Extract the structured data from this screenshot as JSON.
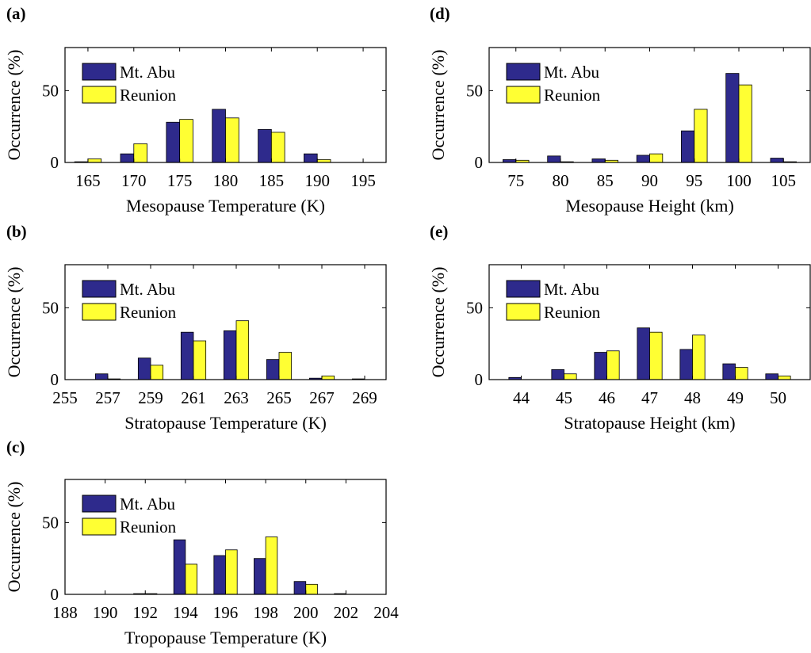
{
  "colors": {
    "mt_abu": "#2e2a8c",
    "reunion": "#ffff33"
  },
  "chart_data": [
    {
      "panel": "(a)",
      "type": "bar",
      "xlabel": "Mesopause Temperature (K)",
      "ylabel": "Occurrence (%)",
      "ylim": [
        0,
        80
      ],
      "yticks": [
        0,
        50
      ],
      "xlim": [
        162.5,
        197.5
      ],
      "xticks": [
        165,
        170,
        175,
        180,
        185,
        190,
        195
      ],
      "legend": {
        "placement": "top-left",
        "entries": [
          "Mt. Abu",
          "Reunion"
        ]
      },
      "series": [
        {
          "name": "Mt. Abu",
          "x": [
            165,
            170,
            175,
            180,
            185,
            190
          ],
          "values": [
            0.5,
            6,
            28,
            37,
            23,
            6
          ]
        },
        {
          "name": "Reunion",
          "x": [
            165,
            170,
            175,
            180,
            185,
            190
          ],
          "values": [
            2.5,
            13,
            30,
            31,
            21,
            2
          ]
        }
      ]
    },
    {
      "panel": "(b)",
      "type": "bar",
      "xlabel": "Stratopause Temperature (K)",
      "ylabel": "Occurrence (%)",
      "ylim": [
        0,
        80
      ],
      "yticks": [
        0,
        50
      ],
      "xlim": [
        255,
        270
      ],
      "xticks": [
        255,
        257,
        259,
        261,
        263,
        265,
        267,
        269
      ],
      "legend": {
        "placement": "top-left",
        "entries": [
          "Mt. Abu",
          "Reunion"
        ]
      },
      "series": [
        {
          "name": "Mt. Abu",
          "x": [
            257,
            259,
            261,
            263,
            265,
            267,
            269
          ],
          "values": [
            4,
            15,
            33,
            34,
            14,
            1,
            0.5
          ]
        },
        {
          "name": "Reunion",
          "x": [
            257,
            259,
            261,
            263,
            265,
            267,
            269
          ],
          "values": [
            0.5,
            10,
            27,
            41,
            19,
            2.5,
            0
          ]
        }
      ]
    },
    {
      "panel": "(c)",
      "type": "bar",
      "xlabel": "Tropopause Temperature (K)",
      "ylabel": "Occurrence (%)",
      "ylim": [
        0,
        80
      ],
      "yticks": [
        0,
        50
      ],
      "xlim": [
        188,
        204
      ],
      "xticks": [
        188,
        190,
        192,
        194,
        196,
        198,
        200,
        202,
        204
      ],
      "legend": {
        "placement": "top-left",
        "entries": [
          "Mt. Abu",
          "Reunion"
        ]
      },
      "series": [
        {
          "name": "Mt. Abu",
          "x": [
            192,
            194,
            196,
            198,
            200,
            202
          ],
          "values": [
            0.5,
            38,
            27,
            25,
            9,
            0.5
          ]
        },
        {
          "name": "Reunion",
          "x": [
            192,
            194,
            196,
            198,
            200,
            202
          ],
          "values": [
            0.5,
            21,
            31,
            40,
            7,
            0
          ]
        }
      ]
    },
    {
      "panel": "(d)",
      "type": "bar",
      "xlabel": "Mesopause Height (km)",
      "ylabel": "Occurrence (%)",
      "ylim": [
        0,
        80
      ],
      "yticks": [
        0,
        50
      ],
      "xlim": [
        72,
        108
      ],
      "xticks": [
        75,
        80,
        85,
        90,
        95,
        100,
        105
      ],
      "legend": {
        "placement": "top-left",
        "entries": [
          "Mt. Abu",
          "Reunion"
        ]
      },
      "series": [
        {
          "name": "Mt. Abu",
          "x": [
            75,
            80,
            85,
            90,
            95,
            100,
            105
          ],
          "values": [
            2,
            4.5,
            2.5,
            5,
            22,
            62,
            3
          ]
        },
        {
          "name": "Reunion",
          "x": [
            75,
            80,
            85,
            90,
            95,
            100,
            105
          ],
          "values": [
            1.5,
            0.5,
            1.5,
            6,
            37,
            54,
            0.5
          ]
        }
      ]
    },
    {
      "panel": "(e)",
      "type": "bar",
      "xlabel": "Stratopause Height (km)",
      "ylabel": "Occurrence (%)",
      "ylim": [
        0,
        80
      ],
      "yticks": [
        0,
        50
      ],
      "xlim": [
        43.25,
        50.75
      ],
      "xticks": [
        44,
        45,
        46,
        47,
        48,
        49,
        50
      ],
      "legend": {
        "placement": "top-left",
        "entries": [
          "Mt. Abu",
          "Reunion"
        ]
      },
      "series": [
        {
          "name": "Mt. Abu",
          "x": [
            44,
            45,
            46,
            47,
            48,
            49,
            50
          ],
          "values": [
            1.5,
            7,
            19,
            36,
            21,
            11,
            4
          ]
        },
        {
          "name": "Reunion",
          "x": [
            44,
            45,
            46,
            47,
            48,
            49,
            50
          ],
          "values": [
            0,
            4,
            20,
            33,
            31,
            8.5,
            2.5
          ]
        }
      ]
    }
  ]
}
